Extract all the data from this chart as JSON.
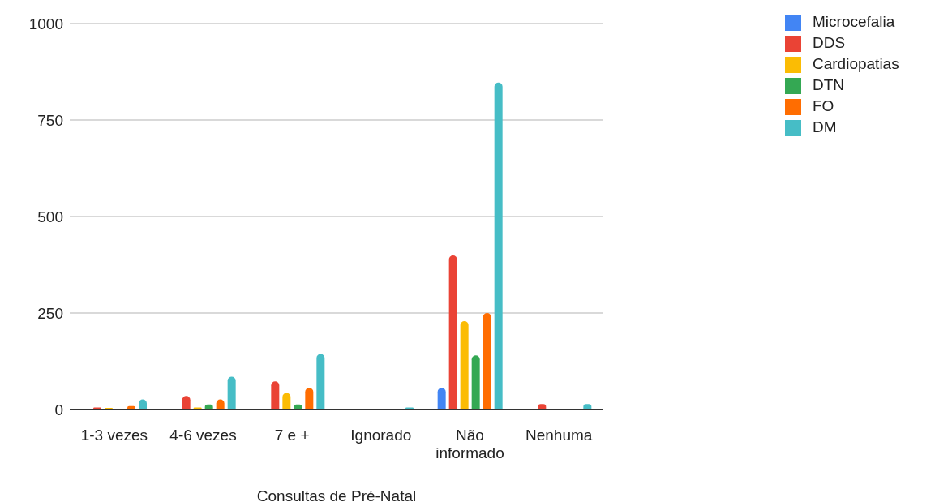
{
  "chart_data": {
    "type": "bar",
    "xlabel": "Consultas de Pré-Natal",
    "categories": [
      "1-3 vezes",
      "4-6 vezes",
      "7 e +",
      "Ignorado",
      "Não informado",
      "Nenhuma"
    ],
    "series": [
      {
        "name": "Microcefalia",
        "color": "#4285f4",
        "values": [
          0,
          0,
          0,
          0,
          56,
          0
        ]
      },
      {
        "name": "DDS",
        "color": "#ea4335",
        "values": [
          5,
          35,
          73,
          0,
          399,
          14
        ]
      },
      {
        "name": "Cardiopatias",
        "color": "#fbbc04",
        "values": [
          4,
          5,
          43,
          0,
          229,
          0
        ]
      },
      {
        "name": "DTN",
        "color": "#34a853",
        "values": [
          0,
          13,
          13,
          0,
          140,
          0
        ]
      },
      {
        "name": "FO",
        "color": "#ff6d01",
        "values": [
          9,
          26,
          56,
          0,
          250,
          0
        ]
      },
      {
        "name": "DM",
        "color": "#46bdc6",
        "values": [
          26,
          85,
          144,
          5,
          847,
          14
        ]
      }
    ],
    "ylim": [
      0,
      1000
    ],
    "yticks": [
      0,
      250,
      500,
      750,
      1000
    ],
    "grid": "y",
    "legend": "top right"
  }
}
